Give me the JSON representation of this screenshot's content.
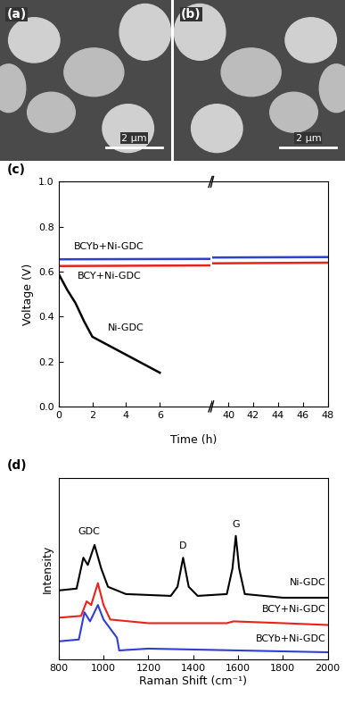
{
  "images": [
    {
      "panel_label": "(a)",
      "scale_bar": "2 μm"
    },
    {
      "panel_label": "(b)",
      "scale_bar": "2 μm"
    }
  ],
  "chart_data": [
    {
      "type": "line",
      "panel_label": "(c)",
      "x_label": "Time (h)",
      "y_label": "Voltage (V)",
      "xlim": [
        [
          0,
          9
        ],
        [
          38.7,
          48
        ]
      ],
      "xticks": [
        0,
        2,
        4,
        6,
        40,
        42,
        44,
        46,
        48
      ],
      "ylim": [
        0,
        1
      ],
      "yticks": [
        {
          "value": 0,
          "label": "0.0"
        },
        {
          "value": 0.2,
          "label": "0.2"
        },
        {
          "value": 0.4,
          "label": "0.4"
        },
        {
          "value": 0.6,
          "label": "0.6"
        },
        {
          "value": 0.8,
          "label": "0.8"
        },
        {
          "value": 1,
          "label": "1.0"
        }
      ],
      "series": [
        {
          "name": "BCYb+Ni-GDC",
          "color": "#2f3fd0",
          "name_at": [
            3,
            0.69
          ],
          "x": [
            0,
            48
          ],
          "values": [
            0.655,
            0.665
          ]
        },
        {
          "name": "BCY+Ni-GDC",
          "color": "#e8231a",
          "name_at": [
            3,
            0.6
          ],
          "x": [
            0,
            48
          ],
          "values": [
            0.625,
            0.64
          ]
        },
        {
          "name": "Ni-GDC",
          "color": "#000000",
          "name_at": [
            4.0,
            0.33
          ],
          "x": [
            0,
            0.5,
            1,
            1.5,
            2,
            3,
            4,
            5,
            6
          ],
          "values": [
            0.59,
            0.52,
            0.46,
            0.38,
            0.31,
            0.27,
            0.23,
            0.19,
            0.15
          ]
        }
      ]
    },
    {
      "type": "line",
      "panel_label": "(d)",
      "x_label": "Raman Shift (cm⁻¹)",
      "y_label": "Intensity",
      "xlim": [
        800,
        2000
      ],
      "xticks": [
        800,
        1000,
        1200,
        1400,
        1600,
        1800,
        2000
      ],
      "ylim": [
        0,
        10
      ],
      "yticks": [],
      "tick_labels": "x",
      "annotations": [
        {
          "text": "GDC",
          "x": 935,
          "y": 6.8
        },
        {
          "text": "D",
          "x": 1355,
          "y": 6.0
        },
        {
          "text": "G",
          "x": 1590,
          "y": 7.2
        }
      ],
      "series": [
        {
          "name": "Ni-GDC",
          "color": "#000000",
          "name_at": [
            1990,
            4.0
          ],
          "x": [
            800,
            880,
            910,
            930,
            960,
            990,
            1020,
            1100,
            1300,
            1330,
            1355,
            1380,
            1420,
            1550,
            1575,
            1590,
            1605,
            1630,
            1800,
            2000
          ],
          "values": [
            3.8,
            3.9,
            5.6,
            5.2,
            6.3,
            5.0,
            4.0,
            3.6,
            3.5,
            4.0,
            5.6,
            4.0,
            3.5,
            3.6,
            5.0,
            6.8,
            5.0,
            3.6,
            3.4,
            3.4
          ]
        },
        {
          "name": "BCY+Ni-GDC",
          "color": "#e8231a",
          "name_at": [
            1990,
            2.5
          ],
          "x": [
            800,
            900,
            925,
            945,
            975,
            1000,
            1030,
            1200,
            1550,
            1580,
            1800,
            2000
          ],
          "values": [
            2.3,
            2.4,
            3.2,
            3.0,
            4.2,
            3.0,
            2.2,
            2.0,
            2.0,
            2.1,
            2.0,
            1.9
          ]
        },
        {
          "name": "BCYb+Ni-GDC",
          "color": "#2f3fd0",
          "name_at": [
            1990,
            0.9
          ],
          "x": [
            800,
            890,
            915,
            940,
            975,
            1000,
            1060,
            1070,
            1200,
            1600,
            2000
          ],
          "values": [
            1.0,
            1.1,
            2.6,
            2.1,
            3.0,
            2.2,
            1.2,
            0.5,
            0.6,
            0.5,
            0.4
          ]
        }
      ]
    }
  ]
}
